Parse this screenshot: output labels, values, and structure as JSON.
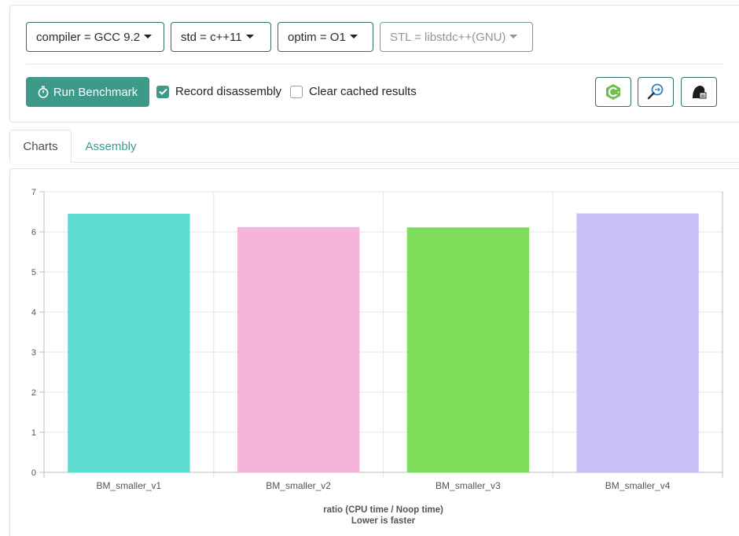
{
  "toolbar": {
    "compiler_label": "compiler = GCC 9.2",
    "std_label": "std = c++11",
    "optim_label": "optim = O1",
    "stl_label": "STL = libstdc++(GNU)",
    "run_label": "Run Benchmark",
    "record_disassembly_label": "Record disassembly",
    "record_disassembly_checked": true,
    "clear_cache_label": "Clear cached results",
    "clear_cache_checked": false
  },
  "tabs": [
    {
      "label": "Charts",
      "active": true
    },
    {
      "label": "Assembly",
      "active": false
    }
  ],
  "icons": {
    "run": "stopwatch-icon",
    "right_buttons": [
      "cpp-logo-icon",
      "search-compare-icon",
      "quickbench-logo-icon"
    ]
  },
  "colors": {
    "accent": "#3d9a8b",
    "bars": [
      "#5cdbd0",
      "#f5b4da",
      "#7ede5c",
      "#c8c0f4"
    ]
  },
  "chart_data": {
    "type": "bar",
    "categories": [
      "BM_smaller_v1",
      "BM_smaller_v2",
      "BM_smaller_v3",
      "BM_smaller_v4"
    ],
    "values": [
      6.45,
      6.12,
      6.11,
      6.46
    ],
    "xlabel": "ratio (CPU time / Noop time)",
    "xlabel2": "Lower is faster",
    "ylim": [
      0,
      7
    ],
    "yticks": [
      "0",
      "1",
      "2",
      "3",
      "4",
      "5",
      "6",
      "7"
    ],
    "grid": true
  }
}
